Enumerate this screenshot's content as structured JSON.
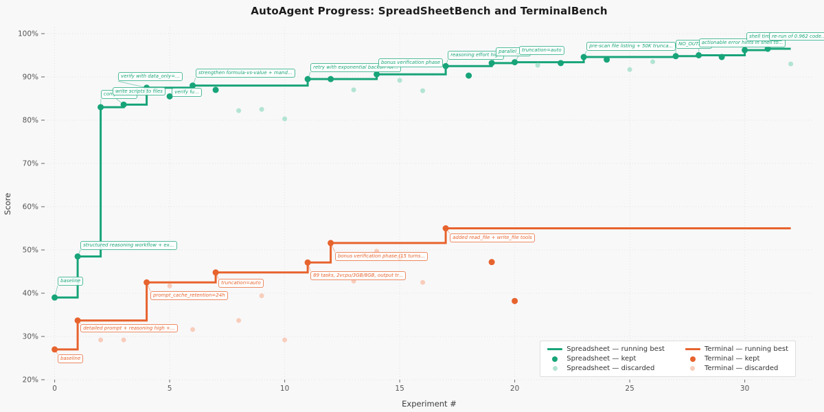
{
  "title": "AutoAgent Progress: SpreadSheetBench and TerminalBench",
  "colors": {
    "spreadsheet": "#17a478",
    "spreadsheet_light": "#b2e4d2",
    "terminal": "#e7632d",
    "terminal_light": "#f8cdbb",
    "background": "#f8f8f9",
    "grid": "#e2e2e6",
    "tick": "#666666",
    "tick_label": "#555555",
    "title": "#1c1c1c",
    "axis_label": "#3c3c3c"
  },
  "chart_data": {
    "type": "line",
    "title": "AutoAgent Progress: SpreadSheetBench and TerminalBench",
    "xlabel": "Experiment #",
    "ylabel": "Score",
    "xlim": [
      -0.5,
      33
    ],
    "ylim": [
      20,
      101
    ],
    "x_ticks": [
      0,
      5,
      10,
      15,
      20,
      25,
      30
    ],
    "y_ticks": [
      20,
      30,
      40,
      50,
      60,
      70,
      80,
      90,
      100
    ],
    "y_tick_labels": [
      "20%",
      "30%",
      "40%",
      "50%",
      "60%",
      "70%",
      "80%",
      "90%",
      "100%"
    ],
    "grid": "dotted",
    "legend_position": "lower right",
    "x_end": 32,
    "series": [
      {
        "name": "Spreadsheet — running best",
        "key": "spreadsheet",
        "running_best_steps": [
          [
            0,
            39.0
          ],
          [
            1,
            48.5
          ],
          [
            2,
            83.0
          ],
          [
            3,
            83.6
          ],
          [
            4,
            87.5
          ],
          [
            6,
            88.0
          ],
          [
            11,
            89.5
          ],
          [
            14,
            90.6
          ],
          [
            17,
            92.5
          ],
          [
            19,
            93.2
          ],
          [
            20,
            93.4
          ],
          [
            23,
            94.6
          ],
          [
            27,
            94.8
          ],
          [
            28,
            95.0
          ],
          [
            30,
            96.2
          ],
          [
            31,
            96.5
          ]
        ],
        "kept": [
          [
            0,
            39.0
          ],
          [
            1,
            48.5
          ],
          [
            2,
            83.0
          ],
          [
            3,
            83.6
          ],
          [
            4,
            87.5
          ],
          [
            5,
            85.5
          ],
          [
            6,
            88.0
          ],
          [
            7,
            87.0
          ],
          [
            11,
            89.5
          ],
          [
            12,
            89.5
          ],
          [
            14,
            90.6
          ],
          [
            17,
            92.5
          ],
          [
            18,
            90.3
          ],
          [
            19,
            93.2
          ],
          [
            20,
            93.4
          ],
          [
            22,
            93.2
          ],
          [
            23,
            94.6
          ],
          [
            24,
            94.0
          ],
          [
            27,
            94.8
          ],
          [
            28,
            95.0
          ],
          [
            29,
            94.6
          ],
          [
            30,
            96.2
          ],
          [
            31,
            96.5
          ]
        ],
        "discarded": [
          [
            8,
            82.2
          ],
          [
            9,
            82.5
          ],
          [
            10,
            80.3
          ],
          [
            13,
            87.0
          ],
          [
            15,
            89.2
          ],
          [
            16,
            86.8
          ],
          [
            21,
            92.7
          ],
          [
            25,
            91.7
          ],
          [
            26,
            93.5
          ],
          [
            32,
            93.0
          ]
        ]
      },
      {
        "name": "Terminal — running best",
        "key": "terminal",
        "running_best_steps": [
          [
            0,
            27.0
          ],
          [
            1,
            33.7
          ],
          [
            4,
            42.5
          ],
          [
            7,
            44.8
          ],
          [
            11,
            47.1
          ],
          [
            12,
            51.6
          ],
          [
            17,
            55.0
          ]
        ],
        "kept": [
          [
            0,
            27.0
          ],
          [
            1,
            33.7
          ],
          [
            4,
            42.5
          ],
          [
            7,
            44.8
          ],
          [
            11,
            47.1
          ],
          [
            12,
            51.6
          ],
          [
            15,
            48.3
          ],
          [
            17,
            55.0
          ],
          [
            19,
            47.2
          ],
          [
            20,
            38.2
          ]
        ],
        "discarded": [
          [
            2,
            29.2
          ],
          [
            3,
            29.2
          ],
          [
            5,
            41.7
          ],
          [
            6,
            31.6
          ],
          [
            8,
            33.7
          ],
          [
            9,
            39.4
          ],
          [
            10,
            29.2
          ],
          [
            13,
            42.8
          ],
          [
            14,
            49.7
          ],
          [
            16,
            42.5
          ]
        ]
      }
    ],
    "annotations": [
      {
        "series": "spreadsheet",
        "x": 0,
        "y": 39.0,
        "lx": 0.13,
        "ly": 41.75,
        "text": "baseline"
      },
      {
        "series": "spreadsheet",
        "x": 1,
        "y": 48.5,
        "lx": 1.12,
        "ly": 50.0,
        "text": "structured reasoning workflow + ex..."
      },
      {
        "series": "spreadsheet",
        "x": 2,
        "y": 83.0,
        "lx": 2.01,
        "ly": 84.9,
        "text": "compute w..."
      },
      {
        "series": "spreadsheet",
        "x": 3,
        "y": 83.6,
        "lx": 2.52,
        "ly": 85.6,
        "text": "write scripts to files"
      },
      {
        "series": "spreadsheet",
        "x": 5,
        "y": 85.5,
        "lx": 5.09,
        "ly": 85.4,
        "text": "verify fu..."
      },
      {
        "series": "spreadsheet",
        "x": 4,
        "y": 87.5,
        "lx": 2.76,
        "ly": 89.0,
        "text": "verify with data_only=..."
      },
      {
        "series": "spreadsheet",
        "x": 6,
        "y": 88.0,
        "lx": 6.13,
        "ly": 89.8,
        "text": "strengthen formula-vs-value + mand..."
      },
      {
        "series": "spreadsheet",
        "x": 11,
        "y": 89.5,
        "lx": 11.12,
        "ly": 91.1,
        "text": "retry with exponential backoff for..."
      },
      {
        "series": "spreadsheet",
        "x": 14,
        "y": 90.6,
        "lx": 14.07,
        "ly": 92.2,
        "text": "bonus verification phase"
      },
      {
        "series": "spreadsheet",
        "x": 17,
        "y": 92.5,
        "lx": 17.09,
        "ly": 94.0,
        "text": "reasoning effort high"
      },
      {
        "series": "spreadsheet",
        "x": 19,
        "y": 93.2,
        "lx": 19.18,
        "ly": 94.8,
        "text": "parallel_to..."
      },
      {
        "series": "spreadsheet",
        "x": 20,
        "y": 93.4,
        "lx": 20.19,
        "ly": 95.1,
        "text": "truncation=auto"
      },
      {
        "series": "spreadsheet",
        "x": 23,
        "y": 94.6,
        "lx": 23.12,
        "ly": 96.0,
        "text": "pre-scan file listing + 50K trunca..."
      },
      {
        "series": "spreadsheet",
        "x": 27,
        "y": 94.8,
        "lx": 27.0,
        "ly": 96.5,
        "text": "NO_OUTPU..."
      },
      {
        "series": "spreadsheet",
        "x": 28,
        "y": 95.0,
        "lx": 28.01,
        "ly": 96.8,
        "text": "actionable error hints in shell to..."
      },
      {
        "series": "spreadsheet",
        "x": 30,
        "y": 96.2,
        "lx": 30.07,
        "ly": 98.2,
        "text": "shell timeo..."
      },
      {
        "series": "spreadsheet",
        "x": 31,
        "y": 96.5,
        "lx": 31.06,
        "ly": 98.3,
        "text": "re-run of 0.962 code..."
      },
      {
        "series": "terminal",
        "x": 0,
        "y": 27.0,
        "lx": 0.13,
        "ly": 25.9,
        "below": true,
        "text": "baseline"
      },
      {
        "series": "terminal",
        "x": 1,
        "y": 33.7,
        "lx": 1.12,
        "ly": 32.9,
        "below": true,
        "text": "detailed prompt + reasoning high +..."
      },
      {
        "series": "terminal",
        "x": 4,
        "y": 42.5,
        "lx": 4.16,
        "ly": 40.5,
        "below": true,
        "text": "prompt_cache_retention=24h"
      },
      {
        "series": "terminal",
        "x": 7,
        "y": 44.8,
        "lx": 7.12,
        "ly": 43.3,
        "below": true,
        "text": "truncation=auto"
      },
      {
        "series": "terminal",
        "x": 11,
        "y": 47.1,
        "lx": 11.12,
        "ly": 45.1,
        "below": true,
        "text": "89 tasks, 2vcpu/3GB/8GB, output tr..."
      },
      {
        "series": "terminal",
        "x": 12,
        "y": 51.6,
        "lx": 12.19,
        "ly": 49.5,
        "below": true,
        "text": "bonus verification phase (15 turns..."
      },
      {
        "series": "terminal",
        "x": 17,
        "y": 55.0,
        "lx": 17.18,
        "ly": 53.8,
        "below": true,
        "text": "added read_file + write_file tools"
      }
    ]
  },
  "legend": {
    "items": [
      {
        "series": "spreadsheet",
        "kind": "line",
        "label": "Spreadsheet — running best"
      },
      {
        "series": "terminal",
        "kind": "line",
        "label": "Terminal — running best"
      },
      {
        "series": "spreadsheet",
        "kind": "dot",
        "label": "Spreadsheet — kept"
      },
      {
        "series": "terminal",
        "kind": "dot",
        "label": "Terminal — kept"
      },
      {
        "series": "spreadsheet",
        "kind": "dot-light",
        "label": "Spreadsheet — discarded"
      },
      {
        "series": "terminal",
        "kind": "dot-light",
        "label": "Terminal — discarded"
      }
    ]
  }
}
